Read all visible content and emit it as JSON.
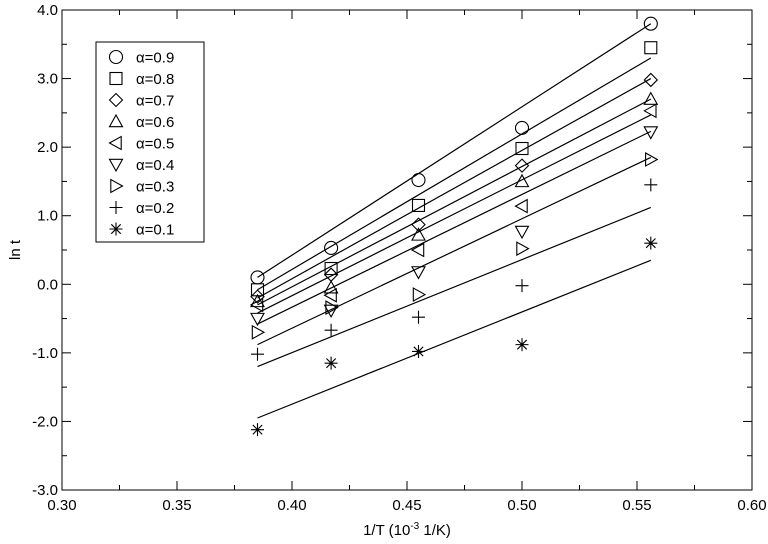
{
  "chart_data": {
    "type": "scatter",
    "xlabel": "1/T (10",
    "xlabel_sup": "-3",
    "xlabel_tail": " 1/K)",
    "ylabel": "ln t",
    "xlim": [
      0.3,
      0.6
    ],
    "ylim": [
      -3.0,
      4.0
    ],
    "x_ticks": [
      "0.30",
      "0.35",
      "0.40",
      "0.45",
      "0.50",
      "0.55",
      "0.60"
    ],
    "y_ticks": [
      "-3.0",
      "-2.0",
      "-1.0",
      "0.0",
      "1.0",
      "2.0",
      "3.0",
      "4.0"
    ],
    "grid": false,
    "legend_position": "top-left",
    "x": [
      0.385,
      0.417,
      0.455,
      0.5,
      0.556
    ],
    "series": [
      {
        "name": "α=0.9",
        "marker": "circle",
        "values": [
          0.1,
          0.53,
          1.52,
          2.28,
          3.8
        ],
        "fit": [
          0.1,
          3.8
        ]
      },
      {
        "name": "α=0.8",
        "marker": "square",
        "values": [
          -0.08,
          0.23,
          1.15,
          1.98,
          3.45
        ],
        "fit": [
          -0.08,
          3.3
        ]
      },
      {
        "name": "α=0.7",
        "marker": "diamond",
        "values": [
          -0.18,
          0.14,
          0.87,
          1.73,
          2.98
        ],
        "fit": [
          -0.2,
          3.0
        ]
      },
      {
        "name": "α=0.6",
        "marker": "triangle-up",
        "values": [
          -0.25,
          -0.05,
          0.72,
          1.5,
          2.7
        ],
        "fit": [
          -0.3,
          2.7
        ]
      },
      {
        "name": "α=0.5",
        "marker": "triangle-left",
        "values": [
          -0.3,
          -0.16,
          0.5,
          1.14,
          2.53
        ],
        "fit": [
          -0.42,
          2.47
        ]
      },
      {
        "name": "α=0.4",
        "marker": "triangle-down",
        "values": [
          -0.5,
          -0.38,
          0.18,
          0.77,
          2.22
        ],
        "fit": [
          -0.58,
          2.23
        ]
      },
      {
        "name": "α=0.3",
        "marker": "triangle-right",
        "values": [
          -0.7,
          -0.34,
          -0.15,
          0.52,
          1.82
        ],
        "fit": [
          -0.88,
          1.85
        ]
      },
      {
        "name": "α=0.2",
        "marker": "plus",
        "values": [
          -1.02,
          -0.67,
          -0.48,
          -0.02,
          1.45
        ],
        "fit": [
          -1.2,
          1.12
        ]
      },
      {
        "name": "α=0.1",
        "marker": "asterisk",
        "values": [
          -2.12,
          -1.15,
          -0.98,
          -0.88,
          0.6
        ],
        "fit": [
          -1.95,
          0.35
        ]
      }
    ]
  }
}
